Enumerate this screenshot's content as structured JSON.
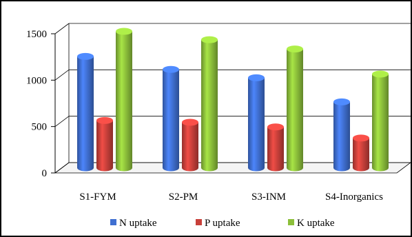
{
  "chart_data": {
    "type": "bar",
    "categories": [
      "S1-FYM",
      "S2-PM",
      "S3-INM",
      "S4-Inorganics"
    ],
    "series": [
      {
        "name": "N uptake",
        "values": [
          1200,
          1060,
          970,
          710
        ],
        "color": "#3f6fd1"
      },
      {
        "name": "P uptake",
        "values": [
          510,
          490,
          440,
          320
        ],
        "color": "#c8403a"
      },
      {
        "name": "K uptake",
        "values": [
          1470,
          1380,
          1280,
          1010
        ],
        "color": "#8cbf3a"
      }
    ],
    "ylim": [
      0,
      1500
    ],
    "yticks": [
      0,
      500,
      1000,
      1500
    ],
    "grid": true,
    "legend_position": "bottom",
    "title": "",
    "xlabel": "",
    "ylabel": ""
  }
}
